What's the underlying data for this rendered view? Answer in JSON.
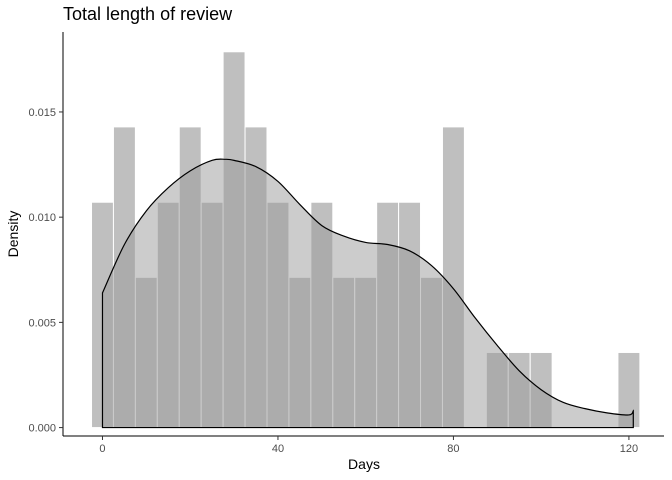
{
  "chart_data": {
    "type": "bar",
    "title": "Total length of review",
    "xlabel": "Days",
    "ylabel": "Density",
    "xlim": [
      -9,
      128
    ],
    "ylim": [
      -0.0004,
      0.0188
    ],
    "x_ticks": [
      0,
      40,
      80,
      120
    ],
    "x_tick_labels": [
      "0",
      "40",
      "80",
      "120"
    ],
    "y_ticks": [
      0.0,
      0.005,
      0.01,
      0.015
    ],
    "y_tick_labels": [
      "0.000",
      "0.005",
      "0.010",
      "0.015"
    ],
    "grid": false,
    "histogram": {
      "bin_width": 5,
      "bins": [
        {
          "x0": -2.5,
          "x1": 2.5,
          "density": 0.01071
        },
        {
          "x0": 2.5,
          "x1": 7.5,
          "density": 0.01429
        },
        {
          "x0": 7.5,
          "x1": 12.5,
          "density": 0.00714
        },
        {
          "x0": 12.5,
          "x1": 17.5,
          "density": 0.01071
        },
        {
          "x0": 17.5,
          "x1": 22.5,
          "density": 0.01429
        },
        {
          "x0": 22.5,
          "x1": 27.5,
          "density": 0.01071
        },
        {
          "x0": 27.5,
          "x1": 32.5,
          "density": 0.01786
        },
        {
          "x0": 32.5,
          "x1": 37.5,
          "density": 0.01429
        },
        {
          "x0": 37.5,
          "x1": 42.5,
          "density": 0.01071
        },
        {
          "x0": 42.5,
          "x1": 47.5,
          "density": 0.00714
        },
        {
          "x0": 47.5,
          "x1": 52.5,
          "density": 0.01071
        },
        {
          "x0": 52.5,
          "x1": 57.5,
          "density": 0.00714
        },
        {
          "x0": 57.5,
          "x1": 62.5,
          "density": 0.00714
        },
        {
          "x0": 62.5,
          "x1": 67.5,
          "density": 0.01071
        },
        {
          "x0": 67.5,
          "x1": 72.5,
          "density": 0.01071
        },
        {
          "x0": 72.5,
          "x1": 77.5,
          "density": 0.00714
        },
        {
          "x0": 77.5,
          "x1": 82.5,
          "density": 0.01429
        },
        {
          "x0": 82.5,
          "x1": 87.5,
          "density": 0
        },
        {
          "x0": 87.5,
          "x1": 92.5,
          "density": 0.00357
        },
        {
          "x0": 92.5,
          "x1": 97.5,
          "density": 0.00357
        },
        {
          "x0": 97.5,
          "x1": 102.5,
          "density": 0.00357
        },
        {
          "x0": 102.5,
          "x1": 107.5,
          "density": 0
        },
        {
          "x0": 107.5,
          "x1": 112.5,
          "density": 0
        },
        {
          "x0": 112.5,
          "x1": 117.5,
          "density": 0
        },
        {
          "x0": 117.5,
          "x1": 122.5,
          "density": 0.00357
        }
      ],
      "fill": "#bfbfbf"
    },
    "density_curve": {
      "x": [
        0,
        5,
        10,
        15,
        20,
        25,
        28,
        30,
        35,
        40,
        45,
        50,
        55,
        60,
        65,
        70,
        75,
        80,
        85,
        90,
        95,
        100,
        105,
        110,
        115,
        120,
        121
      ],
      "y": [
        0.0064,
        0.0087,
        0.0103,
        0.0114,
        0.0122,
        0.0127,
        0.01275,
        0.0127,
        0.0124,
        0.0117,
        0.0106,
        0.0096,
        0.0091,
        0.0088,
        0.0087,
        0.0084,
        0.0077,
        0.0066,
        0.0052,
        0.0039,
        0.0027,
        0.0018,
        0.0012,
        0.0009,
        0.0007,
        0.0006,
        0.0008
      ],
      "fill": "#999999",
      "fill_opacity": 0.5,
      "stroke": "#000000"
    }
  }
}
